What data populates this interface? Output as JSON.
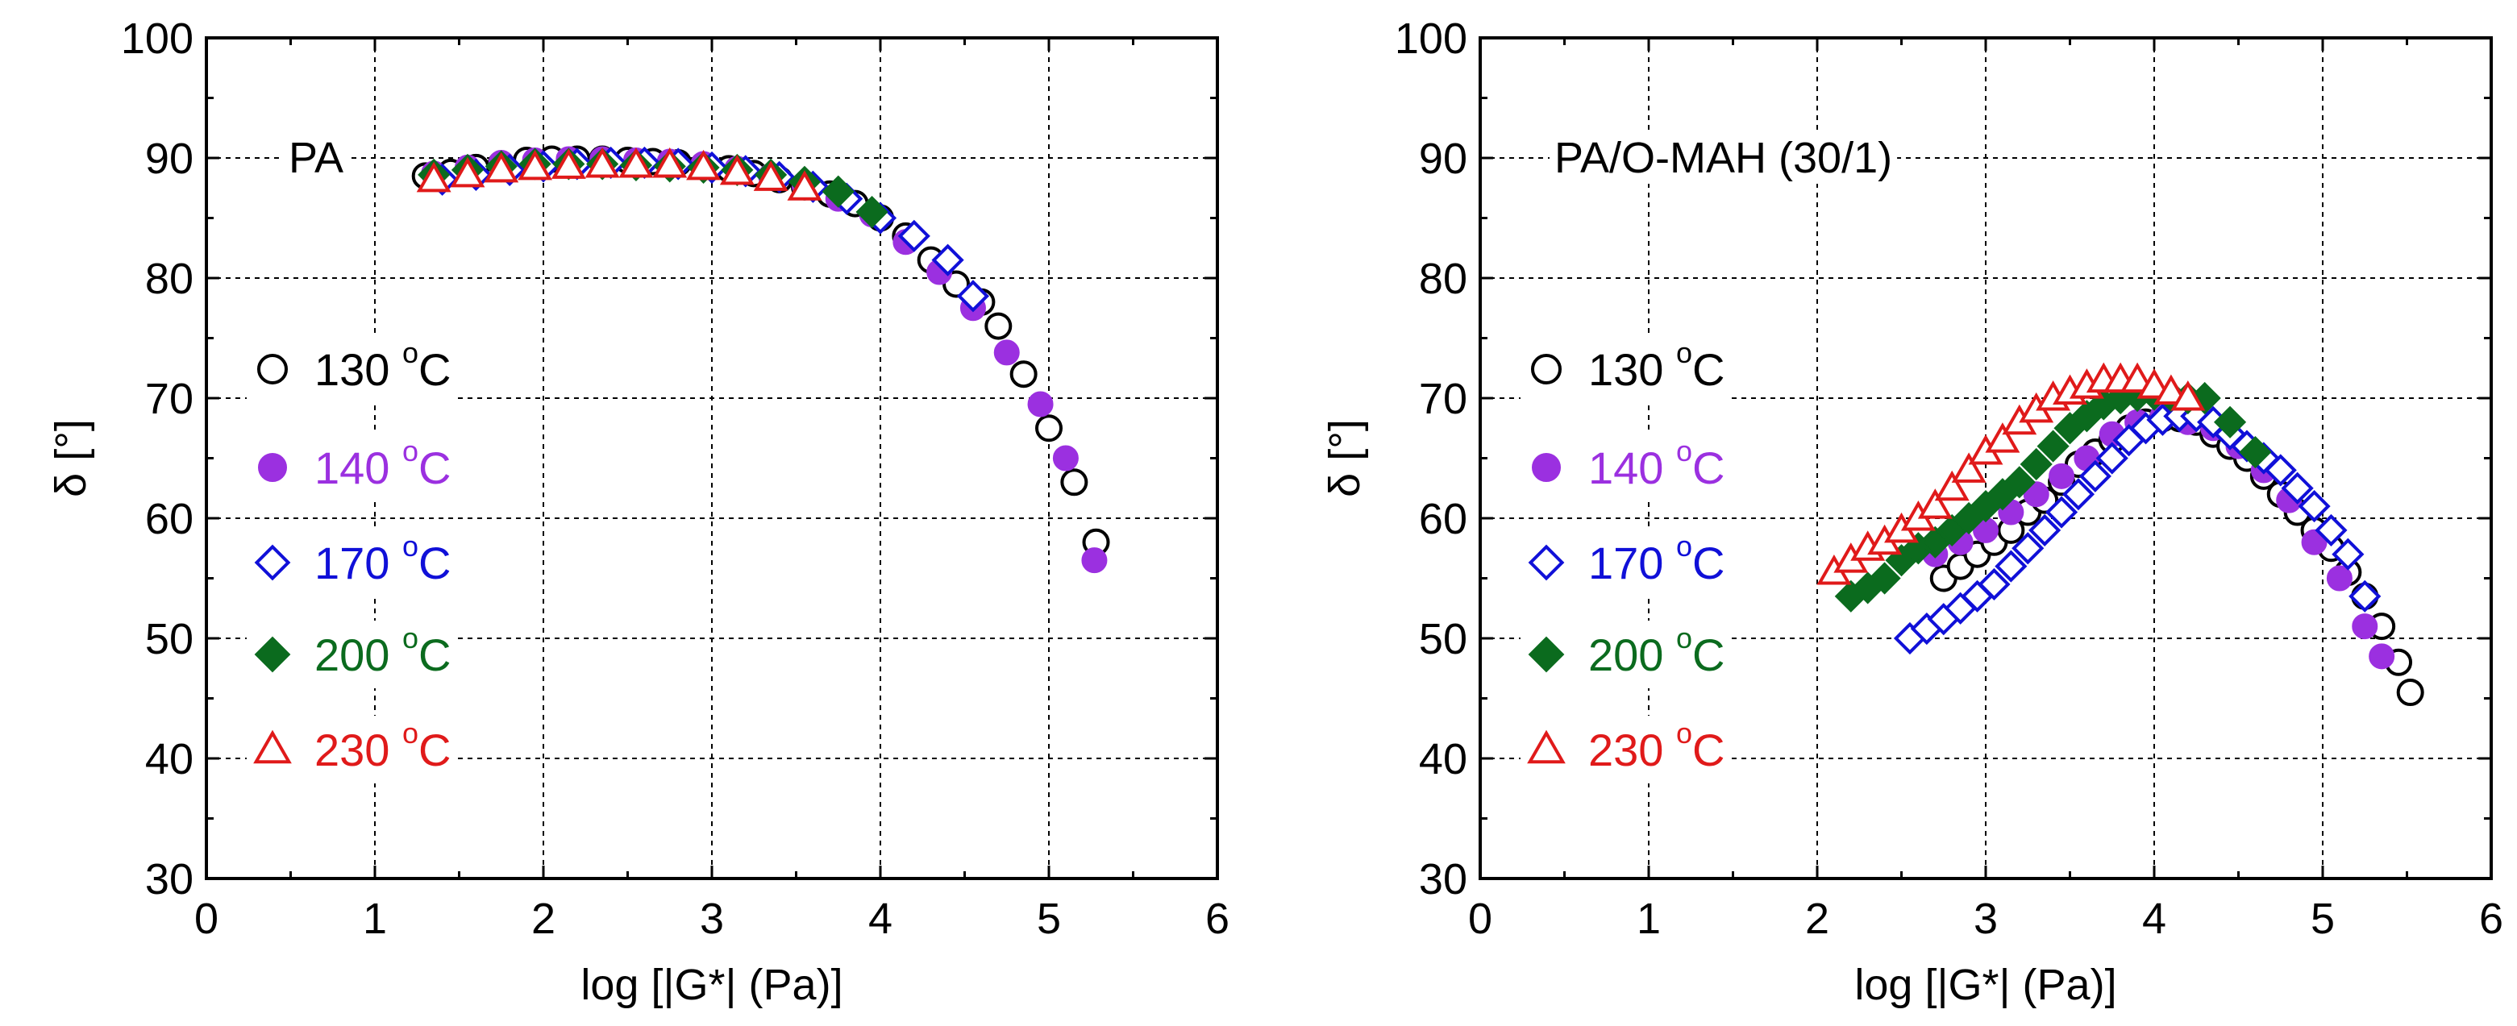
{
  "figure": {
    "series_styles": [
      {
        "name": "130 °C",
        "marker": "circle-open",
        "color": "#000000",
        "legend_color": "#000000"
      },
      {
        "name": "140 °C",
        "marker": "circle-filled",
        "color": "#9b30e0",
        "legend_color": "#9b30e0"
      },
      {
        "name": "170 °C",
        "marker": "diamond-open",
        "color": "#1010d8",
        "legend_color": "#1010d8"
      },
      {
        "name": "200 °C",
        "marker": "diamond-filled",
        "color": "#0b6b1e",
        "legend_color": "#0b6b1e"
      },
      {
        "name": "230 °C",
        "marker": "triangle-open",
        "color": "#e01a1a",
        "legend_color": "#e01a1a"
      }
    ]
  },
  "chart_data": [
    {
      "type": "scatter",
      "panel_label": "PA",
      "xlabel": "log [|G*| (Pa)]",
      "ylabel": "δ [°]",
      "xlim": [
        0,
        6
      ],
      "ylim": [
        30,
        100
      ],
      "xticks": [
        0,
        1,
        2,
        3,
        4,
        5,
        6
      ],
      "yticks": [
        30,
        40,
        50,
        60,
        70,
        80,
        90,
        100
      ],
      "grid": true,
      "legend": [
        {
          "value": "130 ",
          "unit": "C",
          "sup": "o"
        },
        {
          "value": "140 ",
          "unit": "C",
          "sup": "o"
        },
        {
          "value": "170 ",
          "unit": "C",
          "sup": "o"
        },
        {
          "value": "200 ",
          "unit": "C",
          "sup": "o"
        },
        {
          "value": "230 ",
          "unit": "C",
          "sup": "o"
        }
      ],
      "series": [
        {
          "name": "130 °C",
          "x": [
            1.3,
            1.45,
            1.6,
            1.75,
            1.9,
            2.05,
            2.2,
            2.35,
            2.5,
            2.65,
            2.8,
            2.95,
            3.1,
            3.25,
            3.4,
            3.55,
            3.7,
            3.85,
            4.0,
            4.15,
            4.3,
            4.45,
            4.6,
            4.7,
            4.85,
            5.0,
            5.15,
            5.28
          ],
          "y": [
            88.5,
            88.8,
            89.2,
            89.5,
            89.8,
            89.9,
            89.9,
            89.9,
            89.8,
            89.7,
            89.6,
            89.4,
            89.1,
            88.7,
            88.2,
            87.6,
            87,
            86.2,
            85,
            83.5,
            81.5,
            79.5,
            78,
            76,
            72,
            67.5,
            63,
            58
          ]
        },
        {
          "name": "140 °C",
          "x": [
            1.35,
            1.55,
            1.75,
            1.95,
            2.15,
            2.35,
            2.55,
            2.75,
            2.95,
            3.15,
            3.35,
            3.55,
            3.75,
            3.95,
            4.15,
            4.35,
            4.55,
            4.75,
            4.95,
            5.1,
            5.27
          ],
          "y": [
            88.7,
            89.2,
            89.6,
            89.8,
            89.9,
            89.9,
            89.8,
            89.7,
            89.5,
            89.1,
            88.5,
            87.7,
            86.6,
            85.3,
            83,
            80.5,
            77.5,
            73.8,
            69.5,
            65,
            56.5
          ]
        },
        {
          "name": "170 °C",
          "x": [
            1.4,
            1.6,
            1.8,
            2.0,
            2.2,
            2.4,
            2.6,
            2.8,
            3.0,
            3.2,
            3.4,
            3.6,
            3.8,
            4.0,
            4.2,
            4.4,
            4.55
          ],
          "y": [
            88.2,
            88.6,
            89,
            89.3,
            89.5,
            89.6,
            89.6,
            89.5,
            89.2,
            88.9,
            88.4,
            87.6,
            86.6,
            85,
            83.5,
            81.5,
            78.5
          ]
        },
        {
          "name": "200 °C",
          "x": [
            1.35,
            1.55,
            1.75,
            1.95,
            2.15,
            2.35,
            2.55,
            2.75,
            2.95,
            3.15,
            3.35,
            3.55,
            3.75,
            3.95
          ],
          "y": [
            88.6,
            89,
            89.3,
            89.5,
            89.5,
            89.5,
            89.4,
            89.3,
            89.2,
            89.0,
            88.6,
            88.0,
            87.2,
            85.5
          ]
        },
        {
          "name": "230 °C",
          "x": [
            1.35,
            1.55,
            1.75,
            1.95,
            2.15,
            2.35,
            2.55,
            2.75,
            2.95,
            3.15,
            3.35,
            3.55
          ],
          "y": [
            88.2,
            88.6,
            89,
            89.2,
            89.3,
            89.4,
            89.4,
            89.4,
            89.2,
            88.8,
            88.3,
            87.5
          ]
        }
      ]
    },
    {
      "type": "scatter",
      "panel_label": "PA/O-MAH (30/1)",
      "xlabel": "log [|G*| (Pa)]",
      "ylabel": "δ [°]",
      "xlim": [
        0,
        6
      ],
      "ylim": [
        30,
        100
      ],
      "xticks": [
        0,
        1,
        2,
        3,
        4,
        5,
        6
      ],
      "yticks": [
        30,
        40,
        50,
        60,
        70,
        80,
        90,
        100
      ],
      "grid": true,
      "legend": [
        {
          "value": "130 ",
          "unit": "C",
          "sup": "o"
        },
        {
          "value": "140 ",
          "unit": "C",
          "sup": "o"
        },
        {
          "value": "170 ",
          "unit": "C",
          "sup": "o"
        },
        {
          "value": "200 ",
          "unit": "C",
          "sup": "o"
        },
        {
          "value": "230 ",
          "unit": "C",
          "sup": "o"
        }
      ],
      "series": [
        {
          "name": "130 °C",
          "x": [
            2.75,
            2.85,
            2.95,
            3.05,
            3.15,
            3.25,
            3.35,
            3.45,
            3.55,
            3.65,
            3.75,
            3.85,
            3.95,
            4.05,
            4.15,
            4.25,
            4.35,
            4.45,
            4.55,
            4.65,
            4.75,
            4.85,
            4.95,
            5.05,
            5.15,
            5.25,
            5.35,
            5.45,
            5.52
          ],
          "y": [
            55,
            56,
            57,
            58,
            59,
            60.5,
            61.5,
            63,
            64.5,
            65.5,
            66.5,
            67.5,
            68,
            68.3,
            68.3,
            68,
            67,
            66,
            65,
            63.5,
            62,
            60.5,
            59,
            57.5,
            55.5,
            53.5,
            51,
            48,
            45.5
          ]
        },
        {
          "name": "140 °C",
          "x": [
            2.7,
            2.85,
            3.0,
            3.15,
            3.3,
            3.45,
            3.6,
            3.75,
            3.9,
            4.05,
            4.2,
            4.35,
            4.5,
            4.65,
            4.8,
            4.95,
            5.1,
            5.25,
            5.35
          ],
          "y": [
            57,
            58,
            59,
            60.5,
            62,
            63.5,
            65,
            67,
            68,
            68.5,
            68,
            67.5,
            66,
            64,
            61.5,
            58,
            55,
            51,
            48.5
          ]
        },
        {
          "name": "170 °C",
          "x": [
            2.55,
            2.65,
            2.75,
            2.85,
            2.95,
            3.05,
            3.15,
            3.25,
            3.35,
            3.45,
            3.55,
            3.65,
            3.75,
            3.85,
            3.95,
            4.05,
            4.15,
            4.25,
            4.35,
            4.45,
            4.55,
            4.65,
            4.75,
            4.85,
            4.95,
            5.05,
            5.15,
            5.25
          ],
          "y": [
            50,
            50.8,
            51.6,
            52.5,
            53.5,
            54.5,
            56,
            57.5,
            59,
            60.5,
            62,
            63.5,
            65,
            66.5,
            67.5,
            68.2,
            68.5,
            68.5,
            68,
            67,
            66,
            65,
            64,
            62.5,
            61,
            59,
            57,
            53.5
          ]
        },
        {
          "name": "200 °C",
          "x": [
            2.2,
            2.3,
            2.4,
            2.5,
            2.6,
            2.7,
            2.8,
            2.9,
            3.0,
            3.1,
            3.2,
            3.3,
            3.4,
            3.5,
            3.6,
            3.7,
            3.8,
            3.9,
            4.0,
            4.1,
            4.2,
            4.3,
            4.45,
            4.6
          ],
          "y": [
            53.5,
            54.2,
            55,
            56.5,
            57.5,
            58,
            59,
            60,
            61,
            62,
            63,
            64.5,
            66,
            67.5,
            68.5,
            69.5,
            70,
            70.2,
            70.3,
            70.2,
            70,
            70,
            68,
            65.5
          ]
        },
        {
          "name": "230 °C",
          "x": [
            2.1,
            2.2,
            2.3,
            2.4,
            2.5,
            2.6,
            2.7,
            2.8,
            2.9,
            3.0,
            3.1,
            3.2,
            3.3,
            3.4,
            3.5,
            3.6,
            3.7,
            3.8,
            3.9,
            4.0,
            4.1,
            4.2
          ],
          "y": [
            55.5,
            56.5,
            57.5,
            58,
            59,
            60,
            61,
            62.5,
            64,
            65.5,
            66.5,
            68,
            69,
            70,
            70.5,
            71,
            71.5,
            71.5,
            71.5,
            71,
            70.5,
            70
          ]
        }
      ]
    }
  ]
}
